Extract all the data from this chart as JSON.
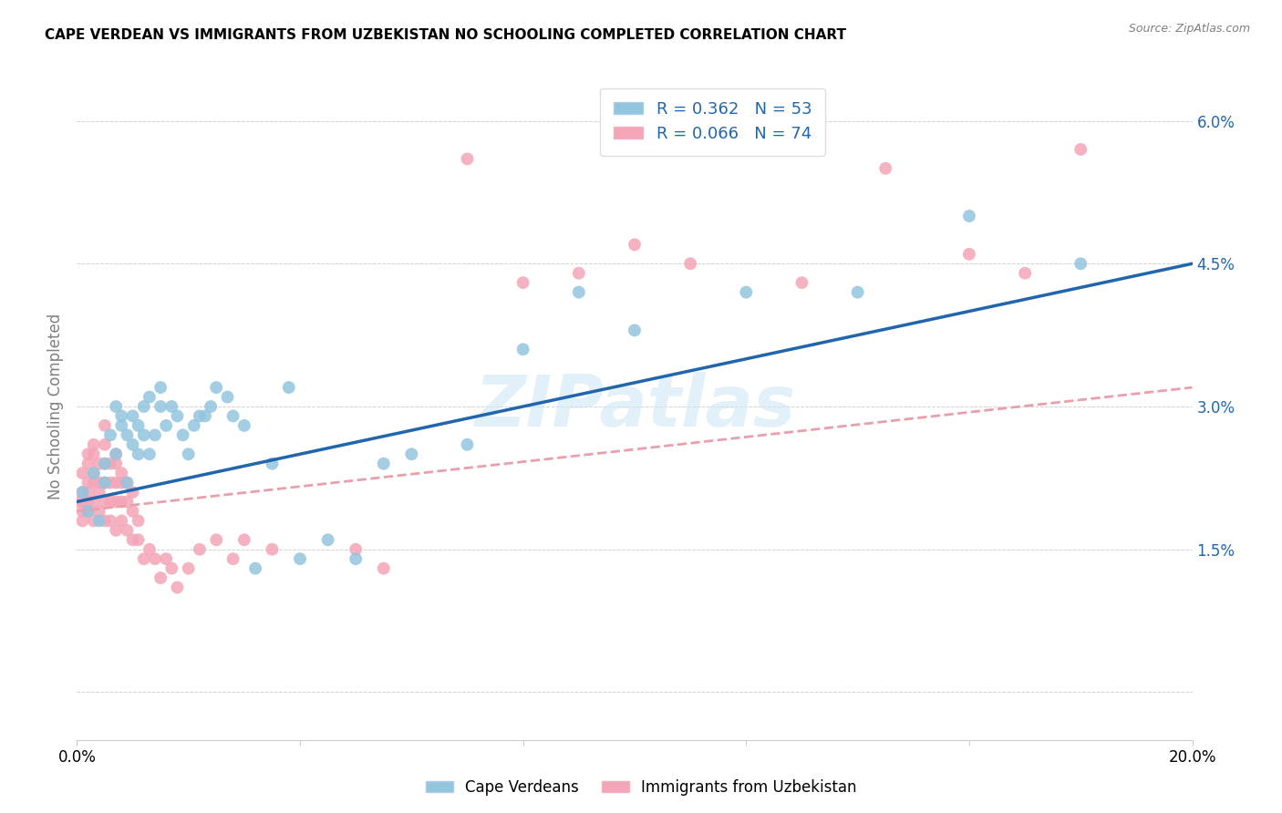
{
  "title": "CAPE VERDEAN VS IMMIGRANTS FROM UZBEKISTAN NO SCHOOLING COMPLETED CORRELATION CHART",
  "source": "Source: ZipAtlas.com",
  "ylabel": "No Schooling Completed",
  "xlim": [
    0.0,
    0.2
  ],
  "ylim": [
    -0.005,
    0.065
  ],
  "xticks": [
    0.0,
    0.04,
    0.08,
    0.12,
    0.16,
    0.2
  ],
  "xticklabels": [
    "0.0%",
    "",
    "",
    "",
    "",
    "20.0%"
  ],
  "yticks": [
    0.0,
    0.015,
    0.03,
    0.045,
    0.06
  ],
  "yticklabels": [
    "",
    "1.5%",
    "3.0%",
    "4.5%",
    "6.0%"
  ],
  "color_blue": "#92c5de",
  "color_pink": "#f4a6b8",
  "trendline_blue": "#2166ac",
  "trendline_pink": "#e8a0aa",
  "watermark": "ZIPatlas",
  "cape_verdeans_x": [
    0.001,
    0.002,
    0.003,
    0.004,
    0.005,
    0.005,
    0.006,
    0.007,
    0.007,
    0.008,
    0.008,
    0.009,
    0.009,
    0.01,
    0.01,
    0.011,
    0.011,
    0.012,
    0.012,
    0.013,
    0.013,
    0.014,
    0.015,
    0.015,
    0.016,
    0.017,
    0.018,
    0.019,
    0.02,
    0.021,
    0.022,
    0.023,
    0.024,
    0.025,
    0.027,
    0.028,
    0.03,
    0.032,
    0.035,
    0.038,
    0.04,
    0.045,
    0.05,
    0.055,
    0.06,
    0.07,
    0.08,
    0.09,
    0.1,
    0.12,
    0.14,
    0.16,
    0.18
  ],
  "cape_verdeans_y": [
    0.021,
    0.019,
    0.023,
    0.018,
    0.022,
    0.024,
    0.027,
    0.025,
    0.03,
    0.028,
    0.029,
    0.027,
    0.022,
    0.026,
    0.029,
    0.025,
    0.028,
    0.03,
    0.027,
    0.031,
    0.025,
    0.027,
    0.03,
    0.032,
    0.028,
    0.03,
    0.029,
    0.027,
    0.025,
    0.028,
    0.029,
    0.029,
    0.03,
    0.032,
    0.031,
    0.029,
    0.028,
    0.013,
    0.024,
    0.032,
    0.014,
    0.016,
    0.014,
    0.024,
    0.025,
    0.026,
    0.036,
    0.042,
    0.038,
    0.042,
    0.042,
    0.05,
    0.045
  ],
  "uzbekistan_x": [
    0.0005,
    0.001,
    0.001,
    0.001,
    0.001,
    0.001,
    0.002,
    0.002,
    0.002,
    0.002,
    0.002,
    0.002,
    0.003,
    0.003,
    0.003,
    0.003,
    0.003,
    0.003,
    0.004,
    0.004,
    0.004,
    0.004,
    0.005,
    0.005,
    0.005,
    0.005,
    0.005,
    0.005,
    0.006,
    0.006,
    0.006,
    0.006,
    0.007,
    0.007,
    0.007,
    0.007,
    0.007,
    0.008,
    0.008,
    0.008,
    0.008,
    0.009,
    0.009,
    0.009,
    0.01,
    0.01,
    0.01,
    0.011,
    0.011,
    0.012,
    0.013,
    0.014,
    0.015,
    0.016,
    0.017,
    0.018,
    0.02,
    0.022,
    0.025,
    0.028,
    0.03,
    0.035,
    0.05,
    0.055,
    0.07,
    0.08,
    0.09,
    0.1,
    0.11,
    0.13,
    0.145,
    0.16,
    0.17,
    0.18
  ],
  "uzbekistan_y": [
    0.02,
    0.019,
    0.021,
    0.023,
    0.018,
    0.02,
    0.019,
    0.021,
    0.022,
    0.024,
    0.025,
    0.02,
    0.018,
    0.02,
    0.022,
    0.023,
    0.025,
    0.026,
    0.019,
    0.021,
    0.022,
    0.024,
    0.018,
    0.02,
    0.022,
    0.024,
    0.026,
    0.028,
    0.018,
    0.02,
    0.022,
    0.024,
    0.017,
    0.02,
    0.022,
    0.024,
    0.025,
    0.018,
    0.02,
    0.022,
    0.023,
    0.017,
    0.02,
    0.022,
    0.016,
    0.019,
    0.021,
    0.016,
    0.018,
    0.014,
    0.015,
    0.014,
    0.012,
    0.014,
    0.013,
    0.011,
    0.013,
    0.015,
    0.016,
    0.014,
    0.016,
    0.015,
    0.015,
    0.013,
    0.056,
    0.043,
    0.044,
    0.047,
    0.045,
    0.043,
    0.055,
    0.046,
    0.044,
    0.057
  ]
}
